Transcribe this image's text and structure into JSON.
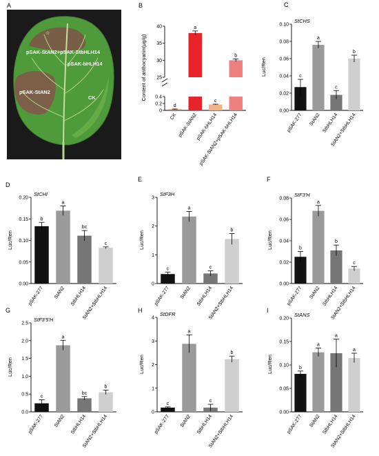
{
  "figure": {
    "colors": {
      "black": "#111111",
      "gray_mid": "#9a9a9a",
      "gray_dark": "#767676",
      "gray_light": "#cfcfcf",
      "red": "#e8232a",
      "pink": "#f08080",
      "orange": "#f4b183",
      "orange_dark": "#e07b39"
    },
    "panel_a": {
      "letter": "A",
      "labels": {
        "star": "pSAK-StAN2+pSAK-StbHLH14",
        "bhlh": "pSAK-bHLH14",
        "stan2": "pSAK-StAN2",
        "ck": "CK"
      }
    }
  },
  "chart_data": [
    {
      "letter": "B",
      "type": "bar",
      "title": "",
      "ylabel": "Content of anthocyanin(μg/g)",
      "categories": [
        "CK",
        "pSAK-StAN2",
        "pSAK-bHLH14",
        "pSAK-StAN2+pSAK-bHLH14"
      ],
      "values": [
        0.03,
        38,
        0.17,
        30
      ],
      "errors": [
        0.01,
        0.6,
        0.01,
        0.4
      ],
      "sig": [
        "d",
        "a",
        "c",
        "b"
      ],
      "colors": [
        "#e07b39",
        "#e8232a",
        "#f4b183",
        "#f08080"
      ],
      "axis_break": true,
      "lower_ticks": [
        0,
        0.2,
        0.4
      ],
      "upper_ticks": [
        25,
        30,
        35,
        40
      ],
      "lower_tick_labels": [
        "0",
        "0.2",
        "0.4"
      ],
      "upper_tick_labels": [
        "25",
        "30",
        "35",
        "40"
      ],
      "lower_range": [
        0,
        0.4
      ],
      "upper_range": [
        25,
        40
      ]
    },
    {
      "letter": "C",
      "type": "bar",
      "title": "StCHS",
      "ylabel": "Luc/Ren",
      "categories": [
        "pSAK-277",
        "StAN2",
        "StbHLH14",
        "StAN2+StbHLH14"
      ],
      "values": [
        0.027,
        0.076,
        0.018,
        0.06
      ],
      "errors": [
        0.009,
        0.004,
        0.005,
        0.004
      ],
      "sig": [
        "c",
        "a",
        "c",
        "b"
      ],
      "ylim": [
        0,
        0.1
      ],
      "ticks": [
        0,
        0.02,
        0.04,
        0.06,
        0.08,
        0.1
      ],
      "tick_labels": [
        "0.00",
        "0.02",
        "0.04",
        "0.06",
        "0.08",
        "0.10"
      ],
      "grid": false
    },
    {
      "letter": "D",
      "type": "bar",
      "title": "StCHI",
      "ylabel": "Luc/Ren",
      "categories": [
        "pSAK-277",
        "StAN2",
        "StbHLH14",
        "StAN2+StbHLH14"
      ],
      "values": [
        0.133,
        0.169,
        0.111,
        0.083
      ],
      "errors": [
        0.009,
        0.011,
        0.012,
        0.002
      ],
      "sig": [
        "b",
        "a",
        "bc",
        "c"
      ],
      "ylim": [
        0,
        0.2
      ],
      "ticks": [
        0,
        0.05,
        0.1,
        0.15,
        0.2
      ],
      "tick_labels": [
        "0.00",
        "0.05",
        "0.10",
        "0.15",
        "0.20"
      ],
      "grid": false
    },
    {
      "letter": "E",
      "type": "bar",
      "title": "StF3H",
      "ylabel": "Luc/Ren",
      "categories": [
        "pSAK-277",
        "StAN2",
        "StbHLH14",
        "StAN2+StbHLH14"
      ],
      "values": [
        0.33,
        2.33,
        0.35,
        1.55
      ],
      "errors": [
        0.07,
        0.18,
        0.09,
        0.19
      ],
      "sig": [
        "c",
        "a",
        "c",
        "b"
      ],
      "ylim": [
        0,
        3
      ],
      "ticks": [
        0,
        1,
        2,
        3
      ],
      "tick_labels": [
        "0",
        "1",
        "2",
        "3"
      ],
      "grid": false
    },
    {
      "letter": "F",
      "type": "bar",
      "title": "StF3'H",
      "ylabel": "Luc/Ren",
      "categories": [
        "pSAK-277",
        "StAN2",
        "StbHLH14",
        "StAN2+StbHLH14"
      ],
      "values": [
        0.025,
        0.068,
        0.031,
        0.014
      ],
      "errors": [
        0.005,
        0.005,
        0.005,
        0.002
      ],
      "sig": [
        "b",
        "a",
        "b",
        "c"
      ],
      "ylim": [
        0,
        0.08
      ],
      "ticks": [
        0,
        0.02,
        0.04,
        0.06,
        0.08
      ],
      "tick_labels": [
        "0.00",
        "0.02",
        "0.04",
        "0.06",
        "0.08"
      ],
      "grid": false
    },
    {
      "letter": "G",
      "type": "bar",
      "title": "StF3'5'H",
      "ylabel": "Luc/Ren",
      "categories": [
        "pSAK-277",
        "StAN2",
        "StbHLH14",
        "StAN2+StbHLH14"
      ],
      "values": [
        0.24,
        1.87,
        0.38,
        0.55
      ],
      "errors": [
        0.1,
        0.14,
        0.05,
        0.06
      ],
      "sig": [
        "c",
        "a",
        "bc",
        "b"
      ],
      "ylim": [
        0,
        2.5
      ],
      "ticks": [
        0,
        0.5,
        1.0,
        1.5,
        2.0,
        2.5
      ],
      "tick_labels": [
        "0.0",
        "0.5",
        "1.0",
        "1.5",
        "2.0",
        "2.5"
      ],
      "grid": false
    },
    {
      "letter": "H",
      "type": "bar",
      "title": "StDFR",
      "ylabel": "Luc/Ren",
      "categories": [
        "pSAK-277",
        "StAN2",
        "StbHLH14",
        "StAN2+StbHLH14"
      ],
      "values": [
        0.18,
        2.88,
        0.18,
        2.23
      ],
      "errors": [
        0.03,
        0.38,
        0.14,
        0.13
      ],
      "sig": [
        "c",
        "a",
        "c",
        "b"
      ],
      "ylim": [
        0,
        4
      ],
      "ticks": [
        0,
        1,
        2,
        3,
        4
      ],
      "tick_labels": [
        "0",
        "1",
        "2",
        "3",
        "4"
      ],
      "grid": false
    },
    {
      "letter": "I",
      "type": "bar",
      "title": "StANS",
      "ylabel": "Luc/Ren",
      "categories": [
        "pSAK-277",
        "StAN2",
        "StbHLH14",
        "StAN2+StbHLH14"
      ],
      "values": [
        0.081,
        0.127,
        0.125,
        0.115
      ],
      "errors": [
        0.006,
        0.009,
        0.03,
        0.01
      ],
      "sig": [
        "b",
        "a",
        "a",
        "a"
      ],
      "ylim": [
        0,
        0.2
      ],
      "ticks": [
        0,
        0.05,
        0.1,
        0.15,
        0.2
      ],
      "tick_labels": [
        "0.00",
        "0.05",
        "0.10",
        "0.15",
        "0.20"
      ],
      "grid": false
    }
  ]
}
